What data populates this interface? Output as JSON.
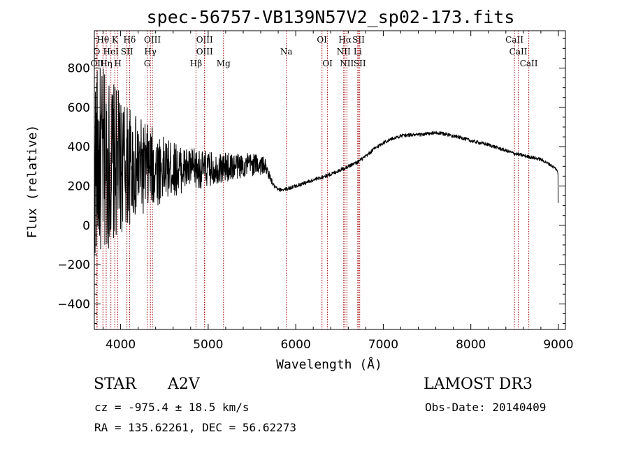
{
  "chart_data": {
    "type": "line",
    "title": "spec-56757-VB139N57V2_sp02-173.fits",
    "xlabel": "Wavelength (Å)",
    "ylabel": "Flux (relative)",
    "xlim": [
      3700,
      9080
    ],
    "ylim": [
      -530,
      990
    ],
    "xticks": [
      4000,
      5000,
      6000,
      7000,
      8000,
      9000
    ],
    "yticks": [
      -400,
      -200,
      0,
      200,
      400,
      600,
      800
    ],
    "grid": false,
    "line_color": "#000000",
    "marker_color": "#a00000",
    "spectrum_envelope": {
      "x": [
        3700,
        3800,
        3900,
        4000,
        4100,
        4200,
        4300,
        4400,
        4500,
        4600,
        4700,
        4800,
        4900,
        5000,
        5100,
        5200,
        5300,
        5400,
        5500,
        5600,
        5650,
        5700,
        5750,
        5800,
        5900,
        6000,
        6100,
        6200,
        6300,
        6400,
        6500,
        6600,
        6700,
        6800,
        6900,
        7000,
        7100,
        7200,
        7300,
        7400,
        7500,
        7600,
        7700,
        7800,
        7900,
        8000,
        8100,
        8200,
        8300,
        8400,
        8500,
        8600,
        8700,
        8800,
        8900,
        8980,
        8995,
        9000
      ],
      "y": [
        310,
        320,
        320,
        310,
        300,
        290,
        290,
        290,
        285,
        285,
        285,
        285,
        285,
        285,
        290,
        295,
        300,
        305,
        310,
        310,
        300,
        250,
        200,
        180,
        185,
        200,
        215,
        230,
        245,
        260,
        280,
        300,
        320,
        350,
        390,
        420,
        440,
        455,
        460,
        460,
        465,
        470,
        465,
        455,
        445,
        430,
        420,
        410,
        395,
        380,
        365,
        355,
        345,
        335,
        310,
        285,
        260,
        15
      ],
      "noise_amplitude": [
        500,
        480,
        420,
        360,
        300,
        260,
        230,
        200,
        160,
        140,
        120,
        110,
        100,
        90,
        80,
        75,
        70,
        65,
        60,
        55,
        40,
        20,
        12,
        10,
        10,
        10,
        10,
        10,
        10,
        10,
        10,
        10,
        10,
        10,
        10,
        10,
        9,
        9,
        9,
        9,
        9,
        9,
        9,
        9,
        9,
        9,
        9,
        9,
        9,
        9,
        9,
        9,
        9,
        9,
        8,
        8,
        8,
        0
      ]
    },
    "line_markers": [
      {
        "label": "Hθ",
        "x": 3798,
        "row": 0
      },
      {
        "label": "K",
        "x": 3934,
        "row": 0
      },
      {
        "label": "Hδ",
        "x": 4102,
        "row": 0
      },
      {
        "label": "OIII",
        "x": 4363,
        "row": 0
      },
      {
        "label": "OIII",
        "x": 4959,
        "row": 0
      },
      {
        "label": "OI",
        "x": 6300,
        "row": 0
      },
      {
        "label": "Hα",
        "x": 6563,
        "row": 0
      },
      {
        "label": "SII",
        "x": 6717,
        "row": 0
      },
      {
        "label": "CaII",
        "x": 8498,
        "row": 0
      },
      {
        "label": "O",
        "x": 3727,
        "row": 1
      },
      {
        "label": "HeI",
        "x": 3889,
        "row": 1
      },
      {
        "label": "SII",
        "x": 4072,
        "row": 1
      },
      {
        "label": "Hγ",
        "x": 4340,
        "row": 1
      },
      {
        "label": "OIII",
        "x": 4959,
        "row": 1
      },
      {
        "label": "Na",
        "x": 5893,
        "row": 1
      },
      {
        "label": "NII",
        "x": 6548,
        "row": 1
      },
      {
        "label": "Li",
        "x": 6708,
        "row": 1
      },
      {
        "label": "CaII",
        "x": 8542,
        "row": 1
      },
      {
        "label": "OII",
        "x": 3733,
        "row": 2
      },
      {
        "label": "Hη",
        "x": 3835,
        "row": 2
      },
      {
        "label": "H",
        "x": 3968,
        "row": 2
      },
      {
        "label": "G",
        "x": 4304,
        "row": 2
      },
      {
        "label": "Hβ",
        "x": 4861,
        "row": 2
      },
      {
        "label": "Mg",
        "x": 5175,
        "row": 2
      },
      {
        "label": "OI",
        "x": 6363,
        "row": 2
      },
      {
        "label": "NII",
        "x": 6584,
        "row": 2
      },
      {
        "label": "SII",
        "x": 6731,
        "row": 2
      },
      {
        "label": "CaII",
        "x": 8662,
        "row": 2
      }
    ]
  },
  "info": {
    "object_type": "STAR",
    "subclass": "A2V",
    "survey": "LAMOST DR3",
    "cz": "cz = -975.4 ± 18.5 km/s",
    "obs_date": "Obs-Date: 20140409",
    "coords": "RA = 135.62261, DEC =  56.62273"
  }
}
